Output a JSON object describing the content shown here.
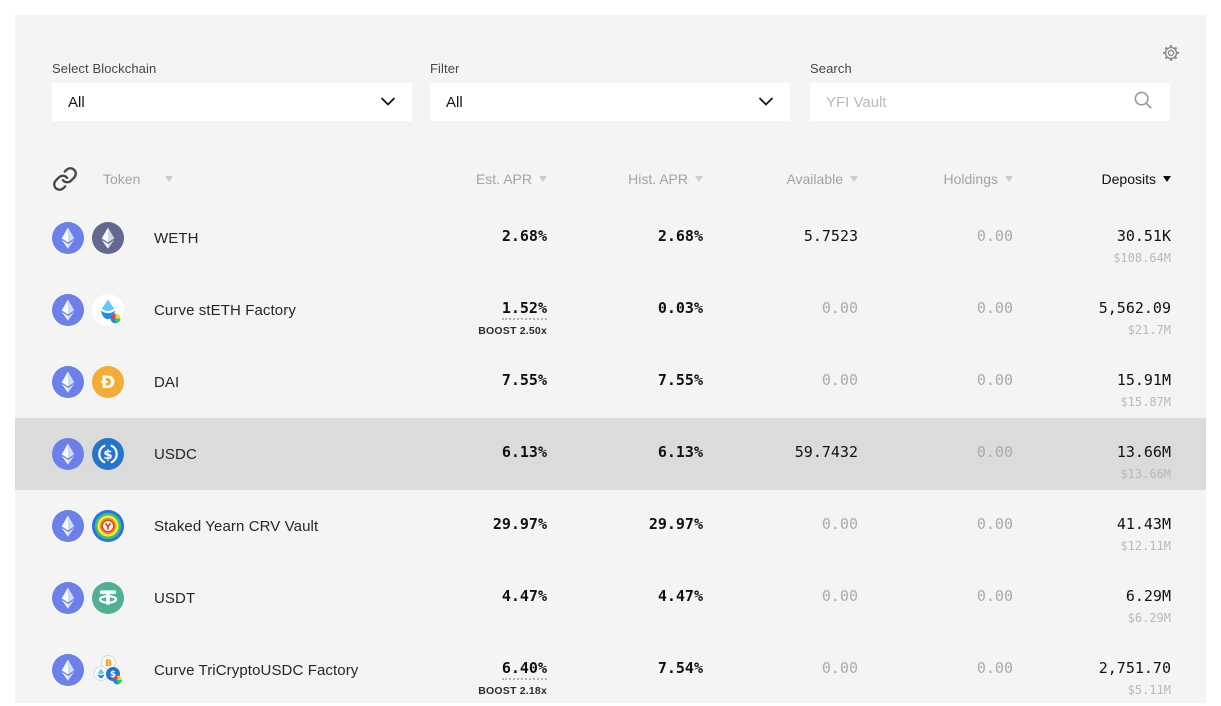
{
  "controls": {
    "blockchain": {
      "label": "Select Blockchain",
      "value": "All"
    },
    "filter": {
      "label": "Filter",
      "value": "All"
    },
    "search": {
      "label": "Search",
      "placeholder": "YFI Vault"
    }
  },
  "table": {
    "headers": {
      "token": "Token",
      "est_apr": "Est. APR",
      "hist_apr": "Hist. APR",
      "available": "Available",
      "holdings": "Holdings",
      "deposits": "Deposits"
    },
    "sort_active": "deposits",
    "rows": [
      {
        "icon": "weth",
        "chain_icon": "ethereum",
        "token": "WETH",
        "est_apr": "2.68%",
        "boost": "",
        "hist_apr": "2.68%",
        "available": "5.7523",
        "holdings": "0.00",
        "deposits": "30.51K",
        "deposits_usd": "$108.64M",
        "highlighted": false
      },
      {
        "icon": "steth",
        "chain_icon": "ethereum",
        "token": "Curve stETH Factory",
        "est_apr": "1.52%",
        "boost": "BOOST 2.50x",
        "hist_apr": "0.03%",
        "available": "0.00",
        "holdings": "0.00",
        "deposits": "5,562.09",
        "deposits_usd": "$21.7M",
        "highlighted": false
      },
      {
        "icon": "dai",
        "chain_icon": "ethereum",
        "token": "DAI",
        "est_apr": "7.55%",
        "boost": "",
        "hist_apr": "7.55%",
        "available": "0.00",
        "holdings": "0.00",
        "deposits": "15.91M",
        "deposits_usd": "$15.87M",
        "highlighted": false
      },
      {
        "icon": "usdc",
        "chain_icon": "ethereum",
        "token": "USDC",
        "est_apr": "6.13%",
        "boost": "",
        "hist_apr": "6.13%",
        "available": "59.7432",
        "holdings": "0.00",
        "deposits": "13.66M",
        "deposits_usd": "$13.66M",
        "highlighted": true
      },
      {
        "icon": "ycrv",
        "chain_icon": "ethereum",
        "token": "Staked Yearn CRV Vault",
        "est_apr": "29.97%",
        "boost": "",
        "hist_apr": "29.97%",
        "available": "0.00",
        "holdings": "0.00",
        "deposits": "41.43M",
        "deposits_usd": "$12.11M",
        "highlighted": false
      },
      {
        "icon": "usdt",
        "chain_icon": "ethereum",
        "token": "USDT",
        "est_apr": "4.47%",
        "boost": "",
        "hist_apr": "4.47%",
        "available": "0.00",
        "holdings": "0.00",
        "deposits": "6.29M",
        "deposits_usd": "$6.29M",
        "highlighted": false
      },
      {
        "icon": "tricrypto",
        "chain_icon": "ethereum",
        "token": "Curve TriCryptoUSDC Factory",
        "est_apr": "6.40%",
        "boost": "BOOST 2.18x",
        "hist_apr": "7.54%",
        "available": "0.00",
        "holdings": "0.00",
        "deposits": "2,751.70",
        "deposits_usd": "$5.11M",
        "highlighted": false
      }
    ]
  },
  "colors": {
    "panel": "#f4f4f5",
    "row_highlight": "#dbdbdb",
    "muted_text": "#ababab",
    "header_text": "#a3a3a3",
    "ethereum_badge": "#6b80e8",
    "weth_badge": "#62688f",
    "dai_badge": "#f5ac37",
    "usdc_badge": "#2775ca",
    "usdt_badge": "#50af95"
  }
}
